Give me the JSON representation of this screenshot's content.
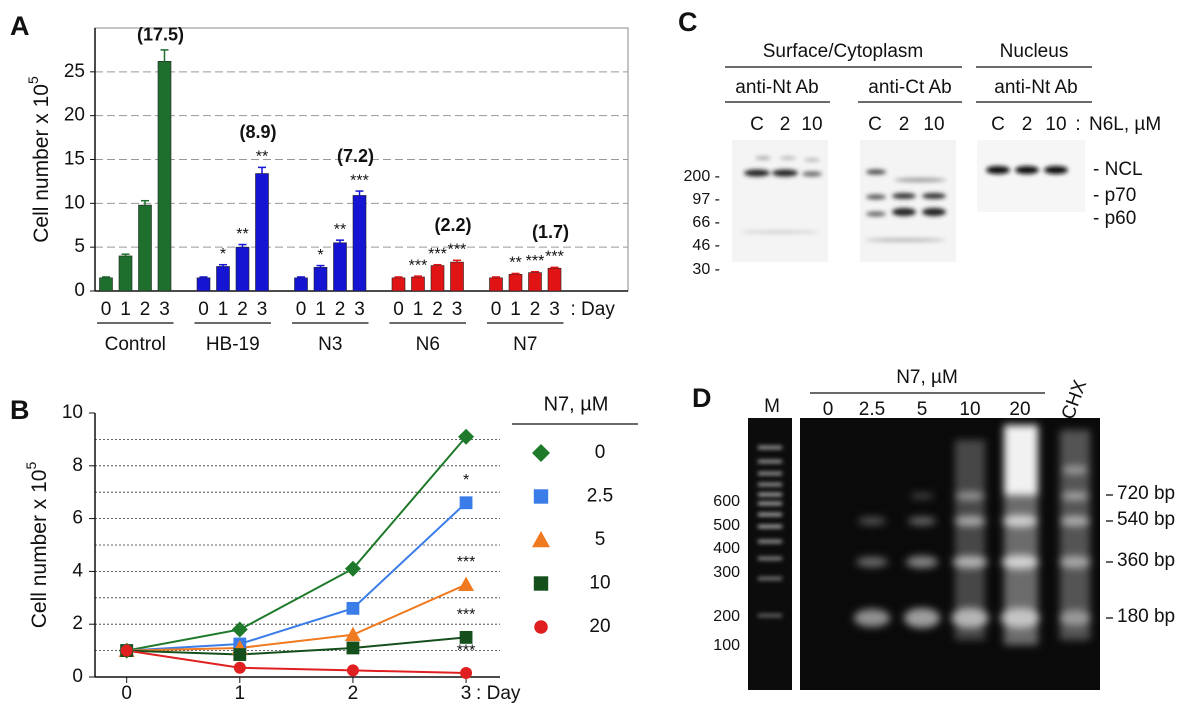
{
  "chart_data": [
    {
      "type": "grouped_bar",
      "panel_label": "A",
      "y_label": "Cell number x 10",
      "y_label_exponent": "5",
      "ylim": [
        0,
        30
      ],
      "yticks": [
        0,
        5,
        10,
        15,
        20,
        25
      ],
      "grid": true,
      "categories": [
        "0",
        "1",
        "2",
        "3"
      ],
      "x_suffix": ": Day",
      "groups": [
        {
          "name": "Control",
          "color": "#1e6e2e",
          "values": [
            1.5,
            4.0,
            9.8,
            26.2
          ],
          "errors": [
            0.1,
            0.2,
            0.5,
            1.3
          ],
          "significance": [
            null,
            null,
            null,
            null
          ],
          "fold_change": "(17.5)"
        },
        {
          "name": "HB-19",
          "color": "#1414d2",
          "values": [
            1.5,
            2.8,
            5.0,
            13.4
          ],
          "errors": [
            0.1,
            0.2,
            0.3,
            0.7
          ],
          "significance": [
            null,
            "*",
            "**",
            "**"
          ],
          "fold_change": "(8.9)"
        },
        {
          "name": "N3",
          "color": "#1414d2",
          "values": [
            1.5,
            2.7,
            5.5,
            10.9
          ],
          "errors": [
            0.1,
            0.2,
            0.3,
            0.5
          ],
          "significance": [
            null,
            "*",
            "**",
            "***"
          ],
          "fold_change": "(7.2)"
        },
        {
          "name": "N6",
          "color": "#e01414",
          "values": [
            1.5,
            1.6,
            2.9,
            3.3
          ],
          "errors": [
            0.1,
            0.1,
            0.1,
            0.2
          ],
          "significance": [
            null,
            "***",
            "***",
            "***"
          ],
          "fold_change": "(2.2)"
        },
        {
          "name": "N7",
          "color": "#e01414",
          "values": [
            1.5,
            1.9,
            2.1,
            2.6
          ],
          "errors": [
            0.1,
            0.1,
            0.1,
            0.1
          ],
          "significance": [
            null,
            "**",
            "***",
            "***"
          ],
          "fold_change": "(1.7)"
        }
      ]
    },
    {
      "type": "line",
      "panel_label": "B",
      "y_label": "Cell number x 10",
      "y_label_exponent": "5",
      "x": [
        0,
        1,
        2,
        3
      ],
      "xlim": [
        -0.28,
        3.3
      ],
      "xticks": [
        0,
        1,
        2,
        3
      ],
      "x_suffix": ": Day",
      "ylim": [
        0,
        10
      ],
      "yticks": [
        0,
        2,
        4,
        6,
        8,
        10
      ],
      "yminor": [
        1,
        2,
        3,
        4,
        5,
        6,
        7,
        8,
        9
      ],
      "grid": true,
      "legend_title": "N7,  µM",
      "series": [
        {
          "name": "0",
          "color": "#1e7a2a",
          "marker": "diamond",
          "values": [
            1.0,
            1.8,
            4.1,
            9.1
          ],
          "significance": [
            null,
            null,
            null,
            null
          ]
        },
        {
          "name": "2.5",
          "color": "#3b7de8",
          "marker": "square",
          "values": [
            1.0,
            1.25,
            2.6,
            6.6
          ],
          "significance": [
            null,
            null,
            null,
            "*"
          ]
        },
        {
          "name": "5",
          "color": "#f07a20",
          "marker": "triangle",
          "values": [
            1.0,
            1.1,
            1.6,
            3.5
          ],
          "significance": [
            null,
            null,
            null,
            "***"
          ]
        },
        {
          "name": "10",
          "color": "#15501c",
          "marker": "square",
          "values": [
            1.0,
            0.85,
            1.1,
            1.5
          ],
          "significance": [
            null,
            null,
            null,
            "***"
          ]
        },
        {
          "name": "20",
          "color": "#e02020",
          "marker": "circle",
          "values": [
            1.0,
            0.35,
            0.25,
            0.15
          ],
          "significance": [
            null,
            null,
            null,
            "***"
          ]
        }
      ]
    }
  ],
  "panel_c": {
    "label": "C",
    "fractions": [
      "Surface/Cytoplasm",
      "Nucleus"
    ],
    "antibodies": [
      "anti-Nt Ab",
      "anti-Ct Ab",
      "anti-Nt Ab"
    ],
    "lanes": [
      "C",
      "2",
      "10",
      "C",
      "2",
      "10",
      "C",
      "2",
      "10"
    ],
    "lane_separator": ":",
    "treatment": "N6L, µM",
    "mw_markers": [
      "200 -",
      "97 -",
      "66 -",
      "46 -",
      "30 -"
    ],
    "bands": [
      "- NCL",
      "- p70",
      "- p60"
    ]
  },
  "panel_d": {
    "label": "D",
    "marker_lane": "M",
    "treatment": "N7, µM",
    "lanes": [
      "0",
      "2.5",
      "5",
      "10",
      "20",
      "CHX"
    ],
    "mw_markers": [
      "600",
      "500",
      "400",
      "300",
      "200",
      "100"
    ],
    "fragments": [
      "720 bp",
      "540 bp",
      "360 bp",
      "180 bp"
    ]
  }
}
